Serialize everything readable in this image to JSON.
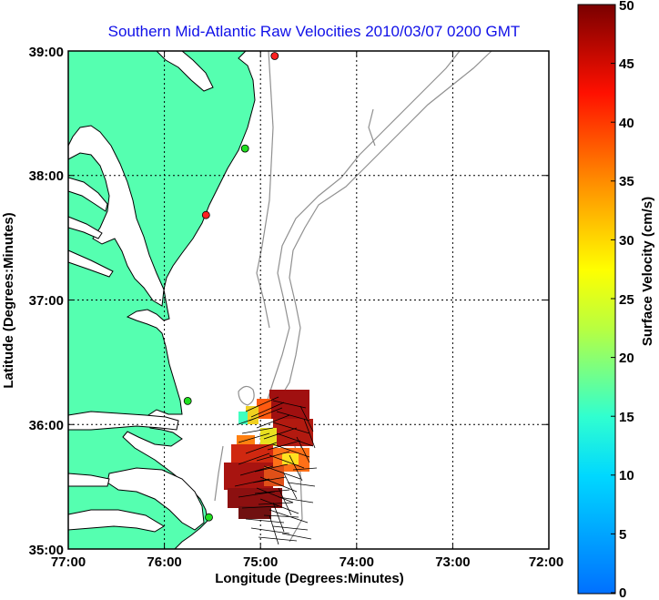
{
  "title": "Southern Mid-Atlantic Raw Velocities 2010/03/07 0200 GMT",
  "x_axis": {
    "label": "Longitude (Degrees:Minutes)",
    "ticks": [
      "77:00",
      "76:00",
      "75:00",
      "74:00",
      "73:00",
      "72:00"
    ]
  },
  "y_axis": {
    "label": "Latitude (Degrees:Minutes)",
    "ticks": [
      "39:00",
      "38:00",
      "37:00",
      "36:00",
      "35:00"
    ]
  },
  "colorbar": {
    "label": "Surface Velocity (cm/s)",
    "ticks": [
      "0",
      "5",
      "10",
      "15",
      "20",
      "25",
      "30",
      "35",
      "40",
      "45",
      "50"
    ],
    "min": 0,
    "max": 50
  },
  "map": {
    "lon_range": [
      -77,
      -72
    ],
    "lat_range": [
      35,
      39
    ],
    "grid": true,
    "land_color": "#55ffb0",
    "coast_color": "#000000",
    "bathymetry_color": "#909090",
    "station_markers": [
      {
        "lon": -74.85,
        "lat": 38.95,
        "status_color": "#ff2020"
      },
      {
        "lon": -75.1,
        "lat": 38.22,
        "status_color": "#20e020"
      },
      {
        "lon": -75.5,
        "lat": 37.67,
        "status_color": "#ff2020"
      },
      {
        "lon": -75.7,
        "lat": 36.17,
        "status_color": "#20e020"
      },
      {
        "lon": -75.5,
        "lat": 35.25,
        "status_color": "#20e020"
      }
    ]
  }
}
